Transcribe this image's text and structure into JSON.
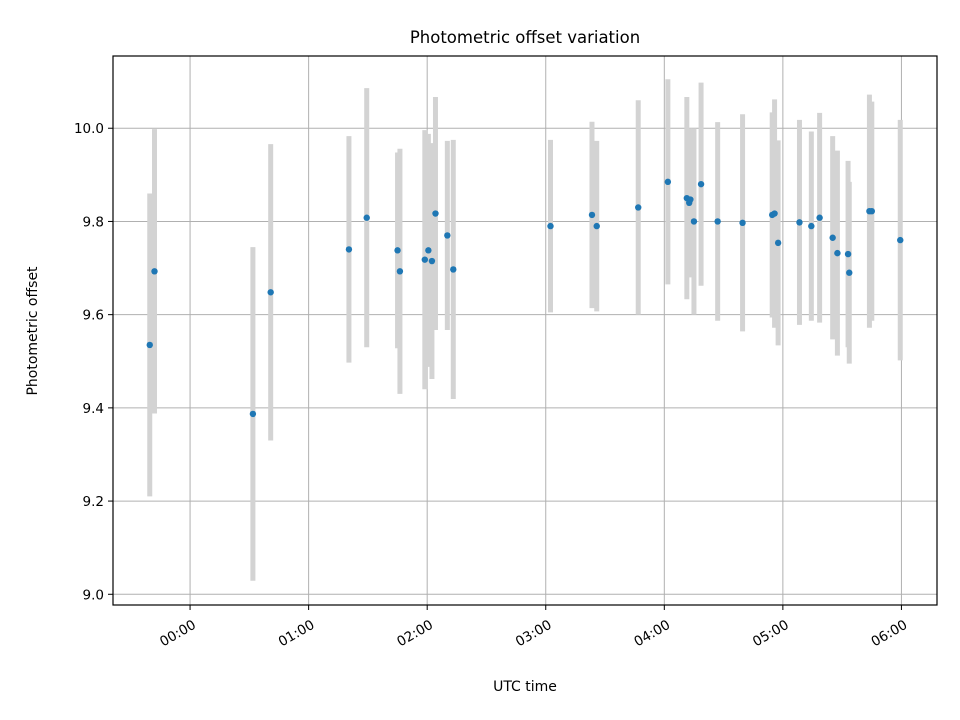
{
  "chart_data": {
    "type": "scatter",
    "title": "Photometric offset variation",
    "xlabel": "UTC time",
    "ylabel": "Photometric offset",
    "xlim": [
      -0.65,
      6.3
    ],
    "ylim": [
      8.977,
      10.155
    ],
    "grid": true,
    "x_ticks": [
      0,
      1,
      2,
      3,
      4,
      5,
      6
    ],
    "x_tick_labels": [
      "00:00",
      "01:00",
      "02:00",
      "03:00",
      "04:00",
      "05:00",
      "06:00"
    ],
    "y_ticks": [
      9.0,
      9.2,
      9.4,
      9.6,
      9.8,
      10.0
    ],
    "y_tick_labels": [
      "9.0",
      "9.2",
      "9.4",
      "9.6",
      "9.8",
      "10.0"
    ],
    "x_unit": "hours UTC",
    "marker_color": "#1f77b4",
    "errorbar_color": "#d3d3d3",
    "series": [
      {
        "name": "offset",
        "points": [
          {
            "x": -0.34,
            "y": 9.535,
            "yerr": 0.325
          },
          {
            "x": -0.3,
            "y": 9.693,
            "yerr": 0.305
          },
          {
            "x": 0.53,
            "y": 9.387,
            "yerr": 0.358
          },
          {
            "x": 0.68,
            "y": 9.648,
            "yerr": 0.318
          },
          {
            "x": 1.34,
            "y": 9.74,
            "yerr": 0.243
          },
          {
            "x": 1.49,
            "y": 9.808,
            "yerr": 0.278
          },
          {
            "x": 1.75,
            "y": 9.738,
            "yerr": 0.21
          },
          {
            "x": 1.77,
            "y": 9.693,
            "yerr": 0.263
          },
          {
            "x": 1.98,
            "y": 9.718,
            "yerr": 0.278
          },
          {
            "x": 2.01,
            "y": 9.738,
            "yerr": 0.25
          },
          {
            "x": 2.04,
            "y": 9.715,
            "yerr": 0.253
          },
          {
            "x": 2.07,
            "y": 9.817,
            "yerr": 0.25
          },
          {
            "x": 2.17,
            "y": 9.77,
            "yerr": 0.203
          },
          {
            "x": 2.22,
            "y": 9.697,
            "yerr": 0.278
          },
          {
            "x": 3.04,
            "y": 9.79,
            "yerr": 0.185
          },
          {
            "x": 3.39,
            "y": 9.814,
            "yerr": 0.2
          },
          {
            "x": 3.43,
            "y": 9.79,
            "yerr": 0.183
          },
          {
            "x": 3.78,
            "y": 9.83,
            "yerr": 0.23
          },
          {
            "x": 4.03,
            "y": 9.885,
            "yerr": 0.22
          },
          {
            "x": 4.19,
            "y": 9.85,
            "yerr": 0.217
          },
          {
            "x": 4.21,
            "y": 9.84,
            "yerr": 0.16
          },
          {
            "x": 4.22,
            "y": 9.847,
            "yerr": 0.15
          },
          {
            "x": 4.25,
            "y": 9.8,
            "yerr": 0.2
          },
          {
            "x": 4.31,
            "y": 9.88,
            "yerr": 0.218
          },
          {
            "x": 4.45,
            "y": 9.8,
            "yerr": 0.213
          },
          {
            "x": 4.66,
            "y": 9.797,
            "yerr": 0.233
          },
          {
            "x": 4.91,
            "y": 9.814,
            "yerr": 0.22
          },
          {
            "x": 4.93,
            "y": 9.817,
            "yerr": 0.245
          },
          {
            "x": 4.96,
            "y": 9.754,
            "yerr": 0.22
          },
          {
            "x": 5.14,
            "y": 9.798,
            "yerr": 0.22
          },
          {
            "x": 5.24,
            "y": 9.79,
            "yerr": 0.203
          },
          {
            "x": 5.31,
            "y": 9.808,
            "yerr": 0.225
          },
          {
            "x": 5.42,
            "y": 9.765,
            "yerr": 0.218
          },
          {
            "x": 5.46,
            "y": 9.732,
            "yerr": 0.22
          },
          {
            "x": 5.55,
            "y": 9.73,
            "yerr": 0.2
          },
          {
            "x": 5.56,
            "y": 9.69,
            "yerr": 0.195
          },
          {
            "x": 5.73,
            "y": 9.822,
            "yerr": 0.25
          },
          {
            "x": 5.75,
            "y": 9.822,
            "yerr": 0.235
          },
          {
            "x": 5.99,
            "y": 9.76,
            "yerr": 0.258
          }
        ]
      }
    ]
  }
}
